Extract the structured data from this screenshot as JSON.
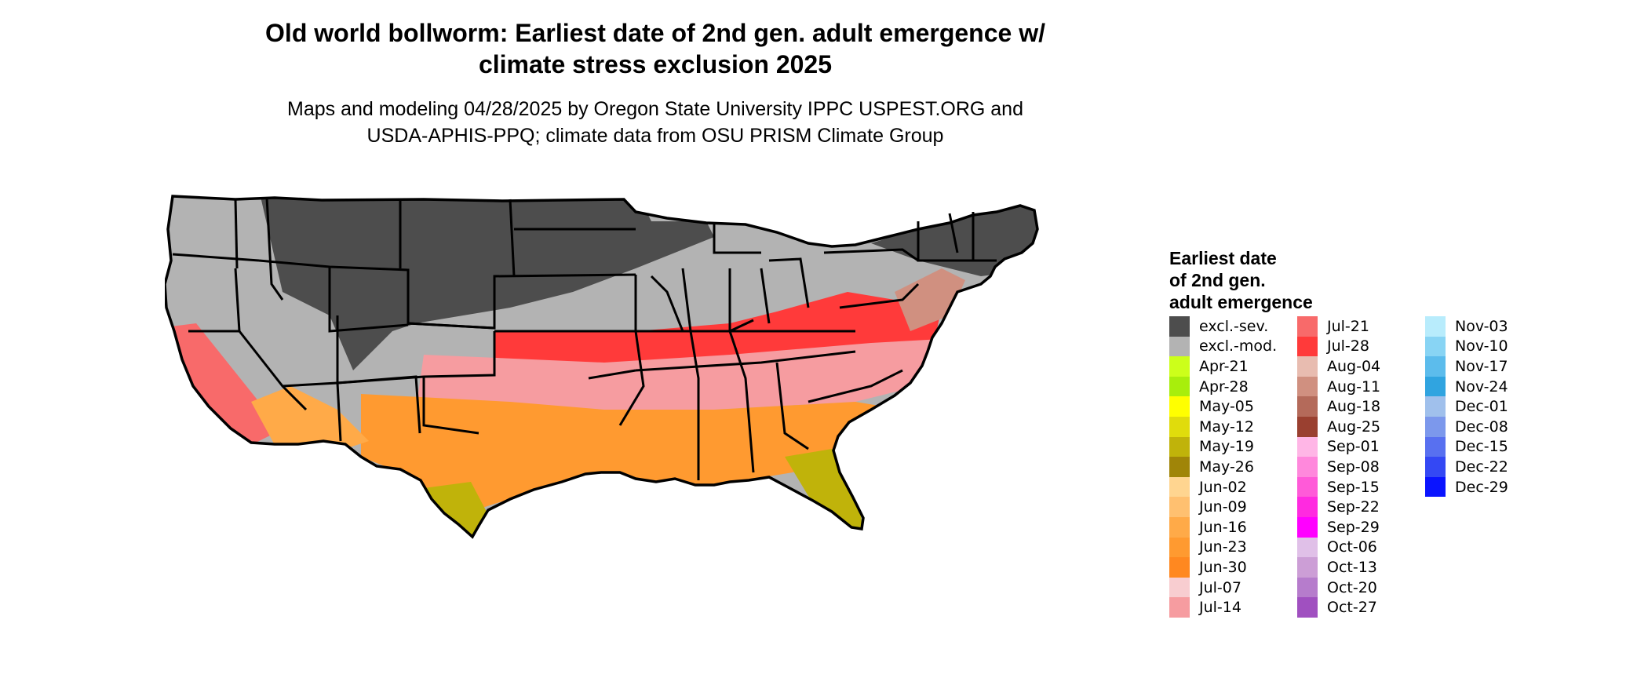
{
  "title": {
    "line1": "Old world bollworm: Earliest date of 2nd gen. adult emergence w/",
    "line2": "climate stress exclusion 2025"
  },
  "subtitle": {
    "line1": "Maps and modeling 04/28/2025 by Oregon State University IPPC USPEST.ORG and",
    "line2": "USDA-APHIS-PPQ; climate data from OSU PRISM Climate Group"
  },
  "legend": {
    "title_line1": "Earliest date",
    "title_line2": "of 2nd gen.",
    "title_line3": "adult emergence",
    "columns": [
      [
        {
          "label": "excl.-sev.",
          "color": "#4d4d4d"
        },
        {
          "label": "excl.-mod.",
          "color": "#b3b3b3"
        },
        {
          "label": "Apr-21",
          "color": "#ccff1a"
        },
        {
          "label": "Apr-28",
          "color": "#a8ee0c"
        },
        {
          "label": "May-05",
          "color": "#ffff00"
        },
        {
          "label": "May-12",
          "color": "#e0dc0c"
        },
        {
          "label": "May-19",
          "color": "#c0b30a"
        },
        {
          "label": "May-26",
          "color": "#a08508"
        },
        {
          "label": "Jun-02",
          "color": "#ffd590"
        },
        {
          "label": "Jun-09",
          "color": "#ffc070"
        },
        {
          "label": "Jun-16",
          "color": "#ffaa48"
        },
        {
          "label": "Jun-23",
          "color": "#ff9a30"
        },
        {
          "label": "Jun-30",
          "color": "#ff8820"
        },
        {
          "label": "Jul-07",
          "color": "#f8cdd0"
        },
        {
          "label": "Jul-14",
          "color": "#f69ca0"
        }
      ],
      [
        {
          "label": "Jul-21",
          "color": "#f86a6a"
        },
        {
          "label": "Jul-28",
          "color": "#ff3a3a"
        },
        {
          "label": "Aug-04",
          "color": "#e8bcb0"
        },
        {
          "label": "Aug-11",
          "color": "#d09080"
        },
        {
          "label": "Aug-18",
          "color": "#b46a5a"
        },
        {
          "label": "Aug-25",
          "color": "#9a4030"
        },
        {
          "label": "Sep-01",
          "color": "#ffb6e6"
        },
        {
          "label": "Sep-08",
          "color": "#ff88dc"
        },
        {
          "label": "Sep-15",
          "color": "#ff5ad8"
        },
        {
          "label": "Sep-22",
          "color": "#ff2ae0"
        },
        {
          "label": "Sep-29",
          "color": "#ff00ff"
        },
        {
          "label": "Oct-06",
          "color": "#e0c0e8"
        },
        {
          "label": "Oct-13",
          "color": "#cc9ed6"
        },
        {
          "label": "Oct-20",
          "color": "#b67ccc"
        },
        {
          "label": "Oct-27",
          "color": "#a050c0"
        }
      ],
      [
        {
          "label": "Nov-03",
          "color": "#b8ecfc"
        },
        {
          "label": "Nov-10",
          "color": "#88d4f4"
        },
        {
          "label": "Nov-17",
          "color": "#5cbcec"
        },
        {
          "label": "Nov-24",
          "color": "#30a4e0"
        },
        {
          "label": "Dec-01",
          "color": "#a0c0ec"
        },
        {
          "label": "Dec-08",
          "color": "#7c98ec"
        },
        {
          "label": "Dec-15",
          "color": "#5870f0"
        },
        {
          "label": "Dec-22",
          "color": "#3448f4"
        },
        {
          "label": "Dec-29",
          "color": "#0a14ff"
        }
      ]
    ]
  },
  "map": {
    "colors": {
      "severe": "#4d4d4d",
      "moderate": "#b3b3b3",
      "border": "#000000",
      "no_data": "#ffffff"
    },
    "regions": [
      {
        "name": "pacific-northwest-exclusion",
        "class": "excl.-mod."
      },
      {
        "name": "northern-tier-exclusion",
        "class": "excl.-sev."
      },
      {
        "name": "midwest-exclusion",
        "class": "excl.-mod."
      },
      {
        "name": "northeast-exclusion",
        "class": "excl.-sev."
      },
      {
        "name": "mid-atlantic-band",
        "class": "Aug-11"
      },
      {
        "name": "upper-south-band",
        "class": "Jul-28"
      },
      {
        "name": "south-band",
        "class": "Jul-14"
      },
      {
        "name": "gulf-band",
        "class": "Jun-23"
      },
      {
        "name": "south-texas",
        "class": "May-19"
      },
      {
        "name": "florida-peninsula",
        "class": "May-19"
      },
      {
        "name": "california-valley",
        "class": "Jul-21"
      },
      {
        "name": "desert-southwest",
        "class": "Jun-16"
      }
    ]
  }
}
